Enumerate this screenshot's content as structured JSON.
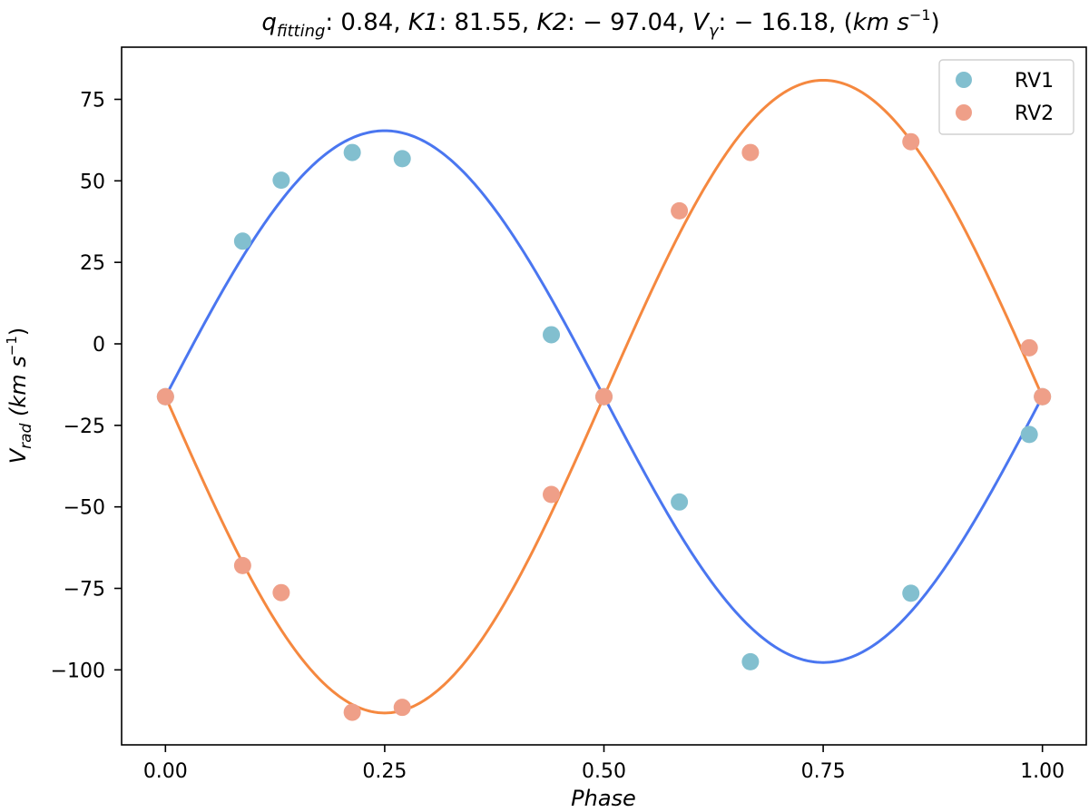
{
  "chart_data": {
    "type": "scatter",
    "title": "q_fitting: 0.84, K1: 81.55, K2: −97.04, Vγ: −16.18, (km s⁻¹)",
    "title_parts": {
      "q_main": "q",
      "q_sub": "fitting",
      "q_value": ": 0.84, ",
      "k1_label": "K1",
      "k1_value": ": 81.55, ",
      "k2_label": "K2",
      "k2_value": ": − 97.04, ",
      "vg_main": "V",
      "vg_sub": "γ",
      "vg_value": ": − 16.18, (",
      "unit_km": "km s",
      "unit_exp": "−1",
      "unit_close": ")"
    },
    "xlabel": "Phase",
    "ylabel_parts": {
      "main": "V",
      "sub": "rad",
      "unit": " (km s",
      "exp": "−1",
      "close": ")"
    },
    "xlim": [
      -0.05,
      1.05
    ],
    "ylim": [
      -123,
      91
    ],
    "xticks": [
      0.0,
      0.25,
      0.5,
      0.75,
      1.0
    ],
    "xtick_labels": [
      "0.00",
      "0.25",
      "0.50",
      "0.75",
      "1.00"
    ],
    "yticks": [
      75,
      50,
      25,
      0,
      -25,
      -50,
      -75,
      -100
    ],
    "ytick_labels": [
      "75",
      "50",
      "25",
      "0",
      "−25",
      "−50",
      "−75",
      "−100"
    ],
    "grid": false,
    "legend_position": "top-right",
    "series": [
      {
        "name": "RV1",
        "color": "#82bfcf",
        "points": [
          {
            "x": 0.0,
            "y": -16.2
          },
          {
            "x": 0.088,
            "y": 31.5
          },
          {
            "x": 0.132,
            "y": 50.2
          },
          {
            "x": 0.213,
            "y": 58.7
          },
          {
            "x": 0.27,
            "y": 56.8
          },
          {
            "x": 0.44,
            "y": 2.8
          },
          {
            "x": 0.5,
            "y": -16.2
          },
          {
            "x": 0.586,
            "y": -48.5
          },
          {
            "x": 0.667,
            "y": -97.5
          },
          {
            "x": 0.85,
            "y": -76.5
          },
          {
            "x": 0.985,
            "y": -27.8
          },
          {
            "x": 1.0,
            "y": -16.2
          }
        ]
      },
      {
        "name": "RV2",
        "color": "#ef9f88",
        "points": [
          {
            "x": 0.0,
            "y": -16.2
          },
          {
            "x": 0.088,
            "y": -68.0
          },
          {
            "x": 0.132,
            "y": -76.3
          },
          {
            "x": 0.213,
            "y": -113.0
          },
          {
            "x": 0.27,
            "y": -111.5
          },
          {
            "x": 0.44,
            "y": -46.2
          },
          {
            "x": 0.5,
            "y": -16.2
          },
          {
            "x": 0.586,
            "y": 40.8
          },
          {
            "x": 0.667,
            "y": 58.7
          },
          {
            "x": 0.85,
            "y": 62.0
          },
          {
            "x": 0.985,
            "y": -1.2
          },
          {
            "x": 1.0,
            "y": -16.2
          }
        ]
      }
    ],
    "fit_curves": [
      {
        "for": "RV1",
        "color": "#4a76f0",
        "k": 81.55,
        "vgamma": -16.18,
        "function": "vgamma + k*sin(2*pi*phase)"
      },
      {
        "for": "RV2",
        "color": "#f5883f",
        "k": -97.04,
        "vgamma": -16.18,
        "function": "vgamma + k*sin(2*pi*phase)"
      }
    ]
  }
}
